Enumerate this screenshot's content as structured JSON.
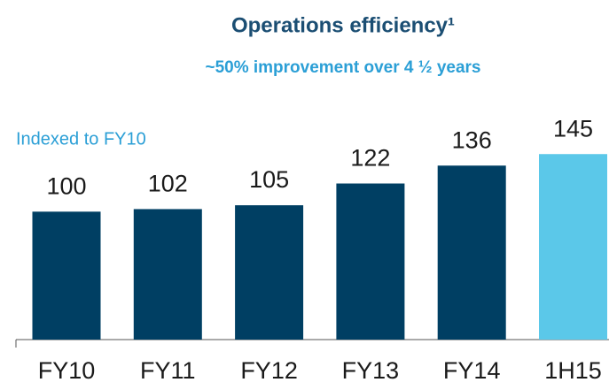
{
  "chart_data": {
    "type": "bar",
    "title": "Operations efficiency¹",
    "subtitle": "~50% improvement over 4 ½ years",
    "annotation": "Indexed to FY10",
    "categories": [
      "FY10",
      "FY11",
      "FY12",
      "FY13",
      "FY14",
      "1H15"
    ],
    "values": [
      100,
      102,
      105,
      122,
      136,
      145
    ],
    "colors": [
      "#003f63",
      "#003f63",
      "#003f63",
      "#003f63",
      "#003f63",
      "#5bc8e9"
    ],
    "ylim": [
      0,
      150
    ]
  }
}
